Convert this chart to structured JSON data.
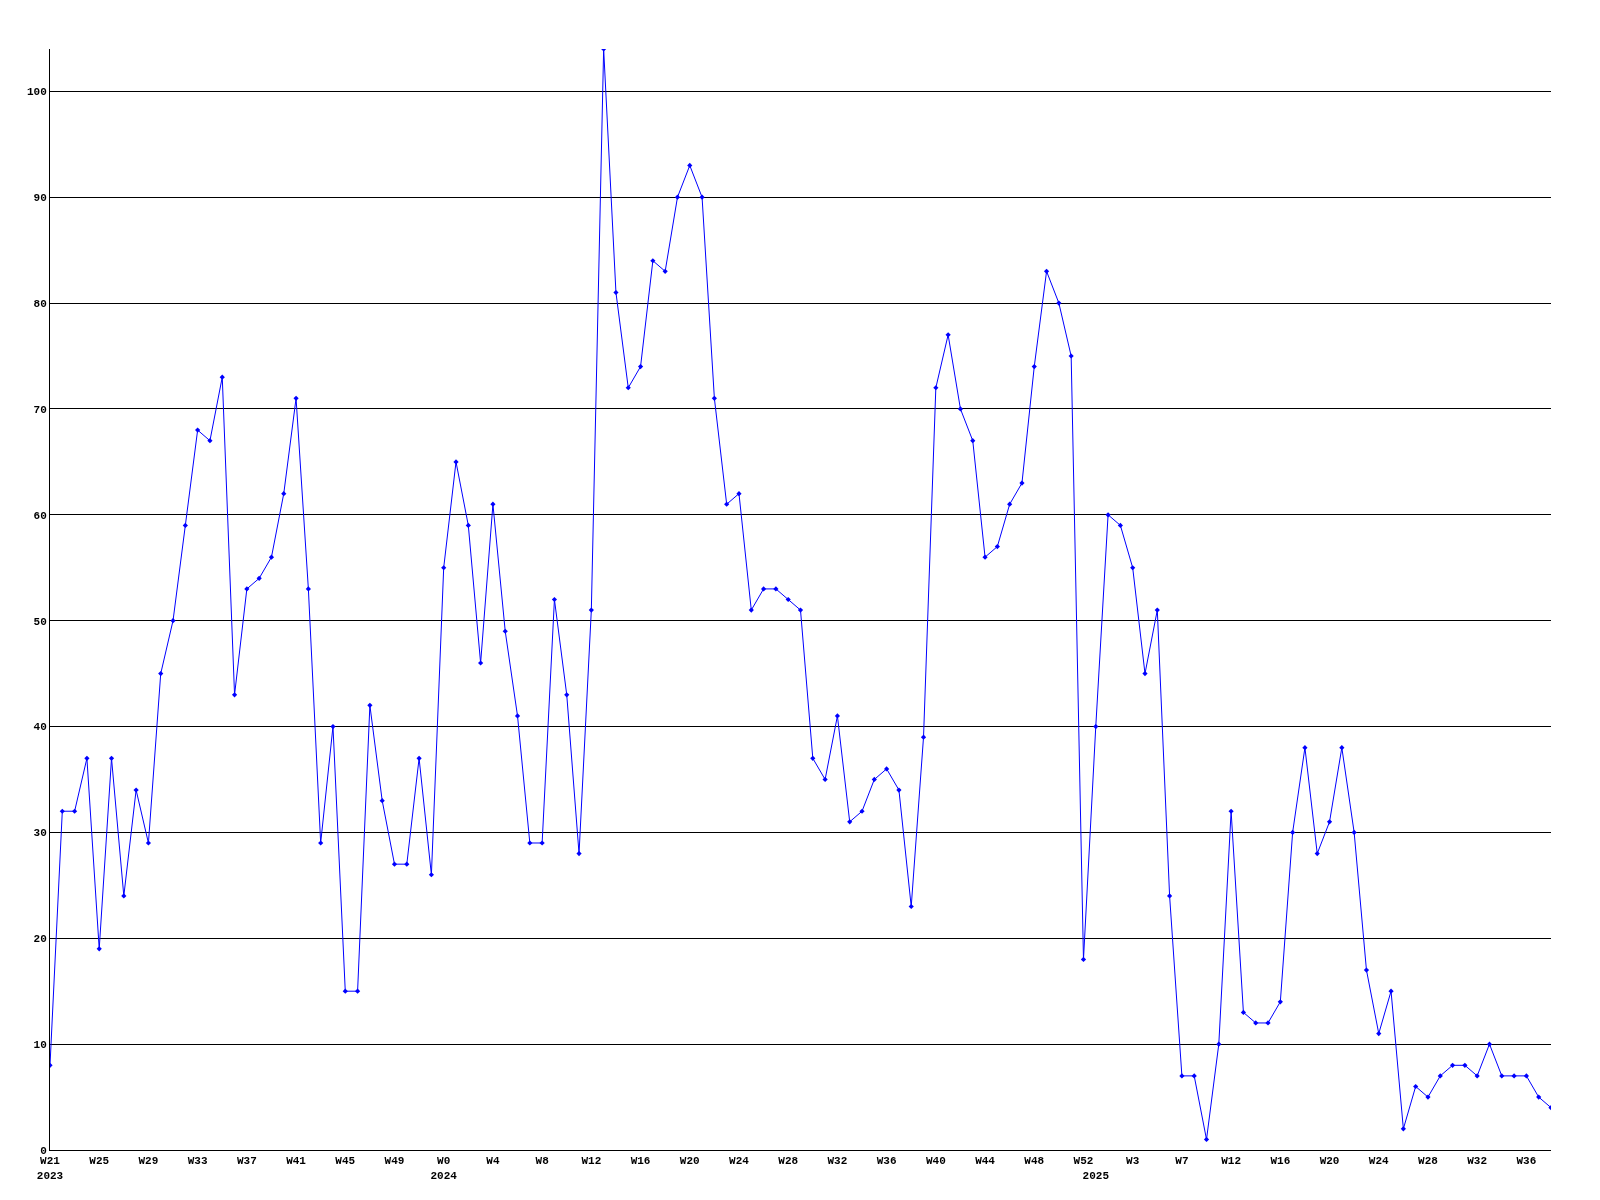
{
  "chart_data": {
    "type": "line",
    "categories": [
      "W21\n2023",
      null,
      null,
      null,
      "W25",
      null,
      null,
      null,
      "W29",
      null,
      null,
      null,
      "W33",
      null,
      null,
      null,
      "W37",
      null,
      null,
      null,
      "W41",
      null,
      null,
      null,
      "W45",
      null,
      null,
      null,
      "W49",
      null,
      null,
      null,
      "W0\n2024",
      null,
      null,
      null,
      "W4",
      null,
      null,
      null,
      "W8",
      null,
      null,
      null,
      "W12",
      null,
      null,
      null,
      "W16",
      null,
      null,
      null,
      "W20",
      null,
      null,
      null,
      "W24",
      null,
      null,
      null,
      "W28",
      null,
      null,
      null,
      "W32",
      null,
      null,
      null,
      "W36",
      null,
      null,
      null,
      "W40",
      null,
      null,
      null,
      "W44",
      null,
      null,
      null,
      "W48",
      null,
      null,
      null,
      "W52",
      "\n2025",
      null,
      null,
      "W3",
      null,
      null,
      null,
      "W7",
      null,
      null,
      null,
      "W12",
      null,
      null,
      null,
      "W16",
      null,
      null,
      null,
      "W20",
      null,
      null,
      null,
      "W24",
      null,
      null,
      null,
      "W28",
      null,
      null,
      null,
      "W32",
      null,
      null,
      null,
      "W36",
      null,
      null
    ],
    "series": [
      {
        "color": "#0000ff",
        "values": [
          8,
          32,
          32,
          37,
          19,
          37,
          24,
          34,
          29,
          45,
          50,
          59,
          68,
          67,
          73,
          43,
          53,
          54,
          56,
          62,
          71,
          53,
          29,
          40,
          15,
          15,
          42,
          33,
          27,
          27,
          37,
          26,
          55,
          65,
          59,
          46,
          61,
          49,
          41,
          29,
          29,
          52,
          43,
          28,
          51,
          104,
          81,
          72,
          74,
          84,
          83,
          90,
          93,
          90,
          71,
          61,
          62,
          51,
          53,
          53,
          52,
          51,
          37,
          35,
          41,
          31,
          32,
          35,
          36,
          34,
          23,
          39,
          72,
          77,
          70,
          67,
          56,
          57,
          61,
          63,
          74,
          83,
          80,
          75,
          18,
          40,
          60,
          59,
          55,
          45,
          51,
          24,
          7,
          7,
          1,
          10,
          32,
          13,
          12,
          12,
          14,
          30,
          38,
          28,
          31,
          38,
          30,
          17,
          11,
          15,
          2,
          6,
          5,
          7,
          8,
          8,
          7,
          10,
          7,
          7,
          7,
          5,
          4
        ]
      }
    ],
    "ylim": [
      0,
      104
    ],
    "yticks": [
      0,
      10,
      20,
      30,
      40,
      50,
      60,
      70,
      80,
      90,
      100
    ],
    "grid": "y",
    "marker": "diamond",
    "line_style": "solid"
  }
}
